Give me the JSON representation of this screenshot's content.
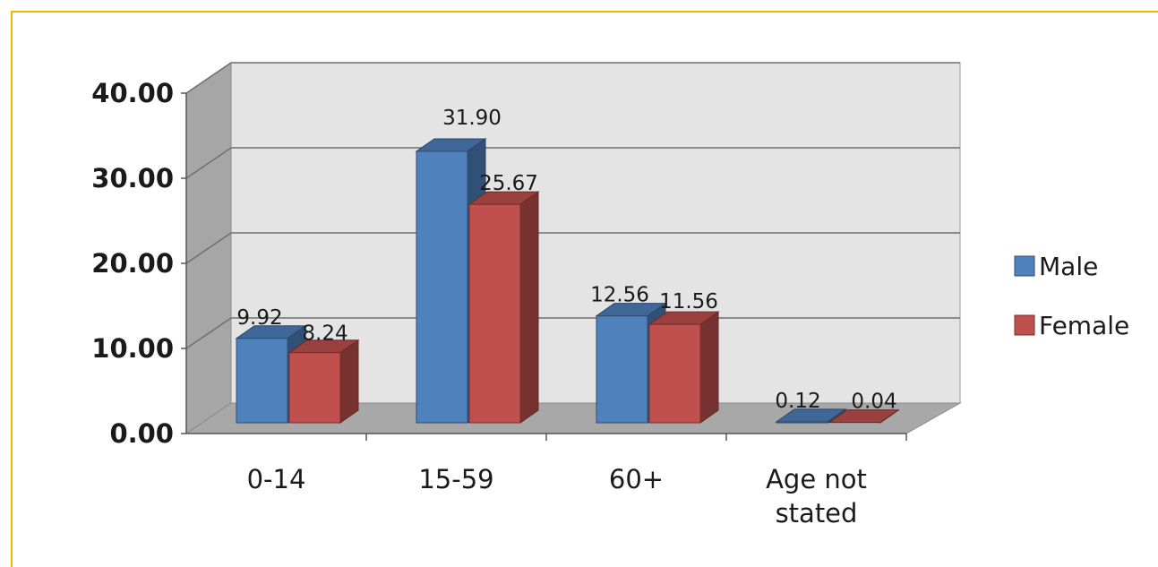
{
  "chart_data": {
    "type": "bar",
    "categories": [
      "0-14",
      "15-59",
      "60+",
      "Age not stated"
    ],
    "category_lines": [
      [
        "0-14"
      ],
      [
        "15-59"
      ],
      [
        "60+"
      ],
      [
        "Age not",
        "stated"
      ]
    ],
    "series": [
      {
        "name": "Male",
        "values": [
          9.92,
          31.9,
          12.56,
          0.12
        ],
        "labels": [
          "9.92",
          "31.90",
          "12.56",
          "0.12"
        ],
        "color": "#4f81bd"
      },
      {
        "name": "Female",
        "values": [
          8.24,
          25.67,
          11.56,
          0.04
        ],
        "labels": [
          "8.24",
          "25.67",
          "11.56",
          "0.04"
        ],
        "color": "#c0504d"
      }
    ],
    "yticks": [
      "0.00",
      "10.00",
      "20.00",
      "30.00",
      "40.00"
    ],
    "ylim": [
      0,
      40
    ],
    "grid": true,
    "legend": "right",
    "style": "3d-clustered-column"
  }
}
